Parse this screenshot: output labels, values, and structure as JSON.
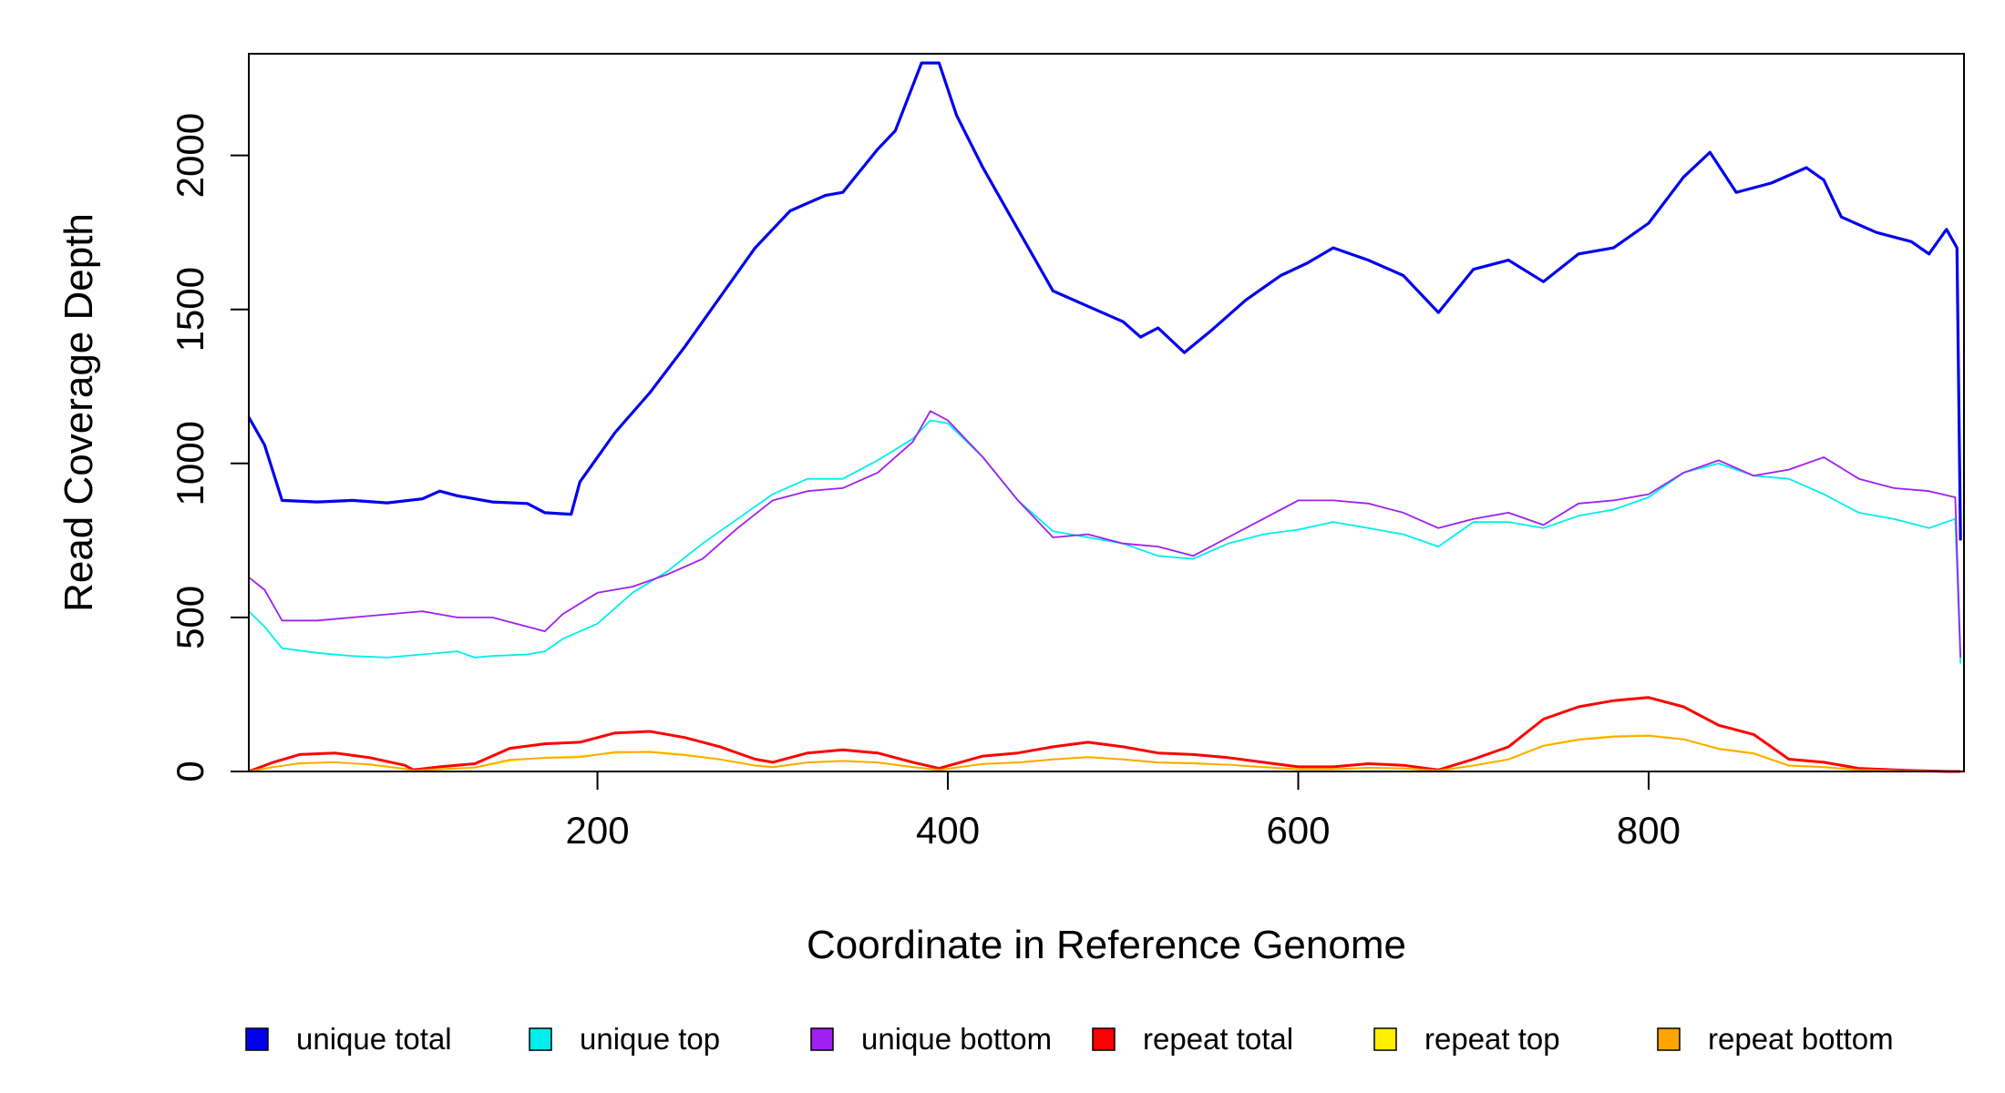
{
  "chart_data": {
    "type": "line",
    "title": "",
    "xlabel": "Coordinate in Reference Genome",
    "ylabel": "Read Coverage Depth",
    "xlim": [
      1,
      980
    ],
    "ylim": [
      0,
      2330
    ],
    "x_ticks": [
      200,
      400,
      600,
      800
    ],
    "y_ticks": [
      0,
      500,
      1000,
      1500,
      2000
    ],
    "grid": false,
    "legend_position": "bottom",
    "series": [
      {
        "name": "unique total",
        "color": "#0000ee",
        "points": [
          [
            1,
            1150
          ],
          [
            10,
            1060
          ],
          [
            20,
            880
          ],
          [
            40,
            875
          ],
          [
            60,
            880
          ],
          [
            80,
            872
          ],
          [
            100,
            885
          ],
          [
            110,
            910
          ],
          [
            120,
            895
          ],
          [
            140,
            875
          ],
          [
            160,
            870
          ],
          [
            170,
            840
          ],
          [
            185,
            835
          ],
          [
            190,
            940
          ],
          [
            210,
            1100
          ],
          [
            230,
            1230
          ],
          [
            250,
            1380
          ],
          [
            270,
            1540
          ],
          [
            290,
            1700
          ],
          [
            310,
            1820
          ],
          [
            330,
            1870
          ],
          [
            340,
            1880
          ],
          [
            360,
            2020
          ],
          [
            370,
            2080
          ],
          [
            385,
            2300
          ],
          [
            395,
            2300
          ],
          [
            405,
            2130
          ],
          [
            420,
            1960
          ],
          [
            440,
            1760
          ],
          [
            460,
            1560
          ],
          [
            480,
            1510
          ],
          [
            500,
            1460
          ],
          [
            510,
            1410
          ],
          [
            520,
            1440
          ],
          [
            535,
            1360
          ],
          [
            550,
            1430
          ],
          [
            570,
            1530
          ],
          [
            590,
            1610
          ],
          [
            605,
            1650
          ],
          [
            620,
            1700
          ],
          [
            640,
            1660
          ],
          [
            660,
            1610
          ],
          [
            680,
            1490
          ],
          [
            700,
            1630
          ],
          [
            720,
            1660
          ],
          [
            740,
            1590
          ],
          [
            760,
            1680
          ],
          [
            780,
            1700
          ],
          [
            800,
            1780
          ],
          [
            820,
            1930
          ],
          [
            835,
            2010
          ],
          [
            850,
            1880
          ],
          [
            870,
            1910
          ],
          [
            890,
            1960
          ],
          [
            900,
            1920
          ],
          [
            910,
            1800
          ],
          [
            930,
            1750
          ],
          [
            950,
            1720
          ],
          [
            960,
            1680
          ],
          [
            970,
            1760
          ],
          [
            976,
            1700
          ],
          [
            978,
            750
          ]
        ]
      },
      {
        "name": "unique top",
        "color": "#00eeee",
        "points": [
          [
            1,
            520
          ],
          [
            10,
            470
          ],
          [
            20,
            400
          ],
          [
            40,
            385
          ],
          [
            60,
            375
          ],
          [
            80,
            370
          ],
          [
            100,
            380
          ],
          [
            120,
            390
          ],
          [
            130,
            370
          ],
          [
            140,
            375
          ],
          [
            160,
            380
          ],
          [
            170,
            390
          ],
          [
            180,
            430
          ],
          [
            200,
            480
          ],
          [
            220,
            580
          ],
          [
            240,
            650
          ],
          [
            260,
            740
          ],
          [
            280,
            820
          ],
          [
            300,
            900
          ],
          [
            320,
            950
          ],
          [
            340,
            950
          ],
          [
            360,
            1010
          ],
          [
            380,
            1080
          ],
          [
            390,
            1140
          ],
          [
            400,
            1130
          ],
          [
            420,
            1020
          ],
          [
            440,
            880
          ],
          [
            460,
            780
          ],
          [
            480,
            760
          ],
          [
            500,
            740
          ],
          [
            520,
            700
          ],
          [
            540,
            690
          ],
          [
            560,
            740
          ],
          [
            580,
            770
          ],
          [
            600,
            785
          ],
          [
            620,
            810
          ],
          [
            640,
            790
          ],
          [
            660,
            770
          ],
          [
            680,
            730
          ],
          [
            700,
            810
          ],
          [
            720,
            810
          ],
          [
            740,
            790
          ],
          [
            760,
            830
          ],
          [
            780,
            850
          ],
          [
            800,
            890
          ],
          [
            820,
            970
          ],
          [
            840,
            1000
          ],
          [
            860,
            960
          ],
          [
            880,
            950
          ],
          [
            900,
            900
          ],
          [
            920,
            840
          ],
          [
            940,
            820
          ],
          [
            960,
            790
          ],
          [
            975,
            820
          ],
          [
            978,
            350
          ]
        ]
      },
      {
        "name": "unique bottom",
        "color": "#a020f0",
        "points": [
          [
            1,
            630
          ],
          [
            10,
            590
          ],
          [
            20,
            490
          ],
          [
            40,
            490
          ],
          [
            60,
            500
          ],
          [
            80,
            510
          ],
          [
            100,
            520
          ],
          [
            120,
            500
          ],
          [
            140,
            500
          ],
          [
            160,
            470
          ],
          [
            170,
            455
          ],
          [
            180,
            510
          ],
          [
            200,
            580
          ],
          [
            220,
            600
          ],
          [
            240,
            640
          ],
          [
            260,
            690
          ],
          [
            280,
            790
          ],
          [
            300,
            880
          ],
          [
            320,
            910
          ],
          [
            340,
            920
          ],
          [
            360,
            970
          ],
          [
            380,
            1070
          ],
          [
            390,
            1170
          ],
          [
            400,
            1140
          ],
          [
            420,
            1020
          ],
          [
            440,
            880
          ],
          [
            460,
            760
          ],
          [
            480,
            770
          ],
          [
            500,
            740
          ],
          [
            520,
            730
          ],
          [
            540,
            700
          ],
          [
            560,
            760
          ],
          [
            580,
            820
          ],
          [
            600,
            880
          ],
          [
            620,
            880
          ],
          [
            640,
            870
          ],
          [
            660,
            840
          ],
          [
            680,
            790
          ],
          [
            700,
            820
          ],
          [
            720,
            840
          ],
          [
            740,
            800
          ],
          [
            760,
            870
          ],
          [
            780,
            880
          ],
          [
            800,
            900
          ],
          [
            820,
            970
          ],
          [
            840,
            1010
          ],
          [
            860,
            960
          ],
          [
            880,
            980
          ],
          [
            900,
            1020
          ],
          [
            920,
            950
          ],
          [
            940,
            920
          ],
          [
            960,
            910
          ],
          [
            975,
            890
          ],
          [
            978,
            370
          ]
        ]
      },
      {
        "name": "repeat total",
        "color": "#ff0000",
        "points": [
          [
            1,
            0
          ],
          [
            15,
            30
          ],
          [
            30,
            55
          ],
          [
            50,
            60
          ],
          [
            70,
            45
          ],
          [
            90,
            20
          ],
          [
            95,
            5
          ],
          [
            110,
            15
          ],
          [
            130,
            25
          ],
          [
            150,
            75
          ],
          [
            170,
            90
          ],
          [
            190,
            95
          ],
          [
            210,
            125
          ],
          [
            230,
            130
          ],
          [
            250,
            110
          ],
          [
            270,
            80
          ],
          [
            290,
            40
          ],
          [
            300,
            30
          ],
          [
            320,
            60
          ],
          [
            340,
            70
          ],
          [
            360,
            60
          ],
          [
            380,
            30
          ],
          [
            395,
            10
          ],
          [
            420,
            50
          ],
          [
            440,
            60
          ],
          [
            460,
            80
          ],
          [
            480,
            95
          ],
          [
            500,
            80
          ],
          [
            520,
            60
          ],
          [
            540,
            55
          ],
          [
            560,
            45
          ],
          [
            580,
            30
          ],
          [
            600,
            15
          ],
          [
            620,
            15
          ],
          [
            640,
            25
          ],
          [
            660,
            20
          ],
          [
            680,
            5
          ],
          [
            700,
            40
          ],
          [
            720,
            80
          ],
          [
            740,
            170
          ],
          [
            760,
            210
          ],
          [
            780,
            230
          ],
          [
            800,
            240
          ],
          [
            820,
            210
          ],
          [
            840,
            150
          ],
          [
            860,
            120
          ],
          [
            880,
            40
          ],
          [
            900,
            30
          ],
          [
            920,
            10
          ],
          [
            940,
            5
          ],
          [
            970,
            0
          ],
          [
            978,
            0
          ]
        ]
      },
      {
        "name": "repeat top",
        "color": "#ffee00",
        "points": [
          [
            1,
            0
          ],
          [
            15,
            15
          ],
          [
            30,
            25
          ],
          [
            50,
            30
          ],
          [
            70,
            22
          ],
          [
            90,
            8
          ],
          [
            95,
            2
          ],
          [
            110,
            8
          ],
          [
            130,
            12
          ],
          [
            150,
            35
          ],
          [
            170,
            45
          ],
          [
            190,
            50
          ],
          [
            210,
            60
          ],
          [
            230,
            65
          ],
          [
            250,
            55
          ],
          [
            270,
            40
          ],
          [
            290,
            20
          ],
          [
            300,
            15
          ],
          [
            320,
            30
          ],
          [
            340,
            35
          ],
          [
            360,
            30
          ],
          [
            380,
            15
          ],
          [
            395,
            5
          ],
          [
            420,
            25
          ],
          [
            440,
            30
          ],
          [
            460,
            40
          ],
          [
            480,
            48
          ],
          [
            500,
            40
          ],
          [
            520,
            30
          ],
          [
            540,
            28
          ],
          [
            560,
            22
          ],
          [
            580,
            15
          ],
          [
            600,
            8
          ],
          [
            620,
            8
          ],
          [
            640,
            12
          ],
          [
            660,
            10
          ],
          [
            680,
            3
          ],
          [
            700,
            20
          ],
          [
            720,
            40
          ],
          [
            740,
            85
          ],
          [
            760,
            105
          ],
          [
            780,
            115
          ],
          [
            800,
            118
          ],
          [
            820,
            105
          ],
          [
            840,
            75
          ],
          [
            860,
            60
          ],
          [
            880,
            20
          ],
          [
            900,
            15
          ],
          [
            920,
            5
          ],
          [
            940,
            2
          ],
          [
            970,
            0
          ],
          [
            978,
            0
          ]
        ]
      },
      {
        "name": "repeat bottom",
        "color": "#ffa500",
        "points": [
          [
            1,
            0
          ],
          [
            15,
            14
          ],
          [
            30,
            27
          ],
          [
            50,
            30
          ],
          [
            70,
            23
          ],
          [
            90,
            9
          ],
          [
            95,
            3
          ],
          [
            110,
            7
          ],
          [
            130,
            13
          ],
          [
            150,
            38
          ],
          [
            170,
            44
          ],
          [
            190,
            46
          ],
          [
            210,
            63
          ],
          [
            230,
            63
          ],
          [
            250,
            53
          ],
          [
            270,
            39
          ],
          [
            290,
            19
          ],
          [
            300,
            14
          ],
          [
            320,
            29
          ],
          [
            340,
            34
          ],
          [
            360,
            29
          ],
          [
            380,
            14
          ],
          [
            395,
            5
          ],
          [
            420,
            24
          ],
          [
            440,
            29
          ],
          [
            460,
            39
          ],
          [
            480,
            46
          ],
          [
            500,
            39
          ],
          [
            520,
            29
          ],
          [
            540,
            26
          ],
          [
            560,
            22
          ],
          [
            580,
            14
          ],
          [
            600,
            7
          ],
          [
            620,
            7
          ],
          [
            640,
            12
          ],
          [
            660,
            10
          ],
          [
            680,
            2
          ],
          [
            700,
            19
          ],
          [
            720,
            39
          ],
          [
            740,
            83
          ],
          [
            760,
            103
          ],
          [
            780,
            113
          ],
          [
            800,
            116
          ],
          [
            820,
            104
          ],
          [
            840,
            73
          ],
          [
            860,
            58
          ],
          [
            880,
            19
          ],
          [
            900,
            14
          ],
          [
            920,
            5
          ],
          [
            940,
            2
          ],
          [
            970,
            0
          ],
          [
            978,
            0
          ]
        ]
      }
    ]
  }
}
